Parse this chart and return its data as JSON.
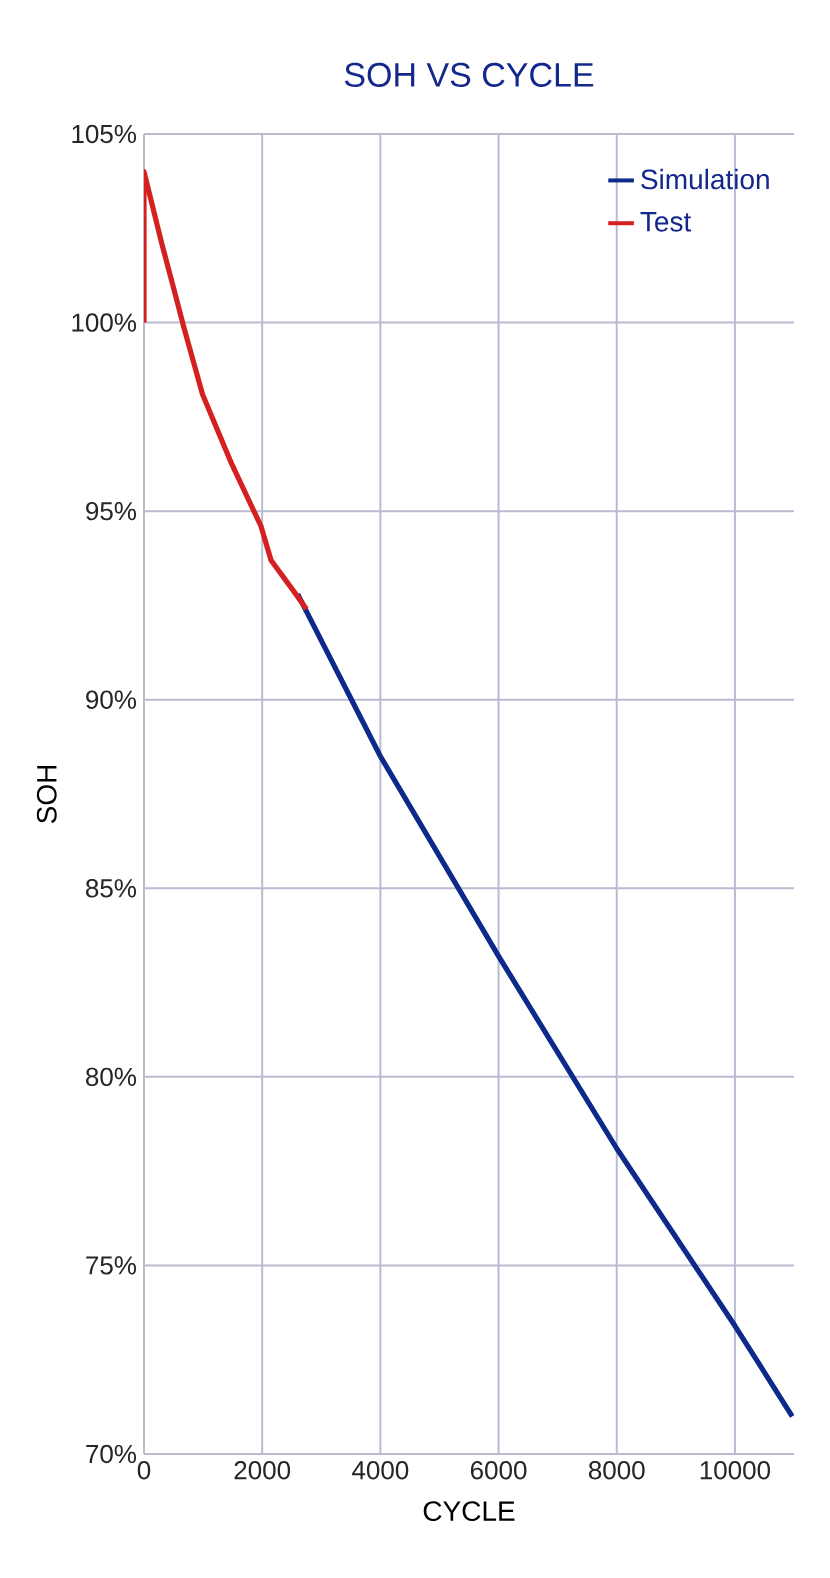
{
  "chart_data": {
    "type": "line",
    "title": "SOH VS CYCLE",
    "xlabel": "CYCLE",
    "ylabel": "SOH",
    "xlim": [
      0,
      11000
    ],
    "ylim": [
      70,
      105
    ],
    "xticks": [
      0,
      2000,
      4000,
      6000,
      8000,
      10000
    ],
    "yticks": [
      {
        "value": 70,
        "label": "70%"
      },
      {
        "value": 75,
        "label": "75%"
      },
      {
        "value": 80,
        "label": "80%"
      },
      {
        "value": 85,
        "label": "85%"
      },
      {
        "value": 90,
        "label": "90%"
      },
      {
        "value": 95,
        "label": "95%"
      },
      {
        "value": 100,
        "label": "100%"
      },
      {
        "value": 105,
        "label": "105%"
      }
    ],
    "grid": true,
    "legend": "top right",
    "marker": "none",
    "line_style": "solid",
    "series": [
      {
        "name": "Simulation",
        "color": "#0d2a8a",
        "x": [
          2600,
          4000,
          6000,
          8000,
          10000,
          10970
        ],
        "values": [
          92.8,
          88.5,
          83.2,
          78.1,
          73.4,
          71.0
        ]
      },
      {
        "name": "Test",
        "color": "#d42020",
        "x": [
          0,
          0,
          300,
          520,
          670,
          990,
          1470,
          1980,
          2150,
          2570,
          2750
        ],
        "values": [
          100,
          104,
          102.1,
          100.8,
          99.9,
          98.1,
          96.3,
          94.6,
          93.7,
          92.8,
          92.4
        ]
      }
    ]
  }
}
